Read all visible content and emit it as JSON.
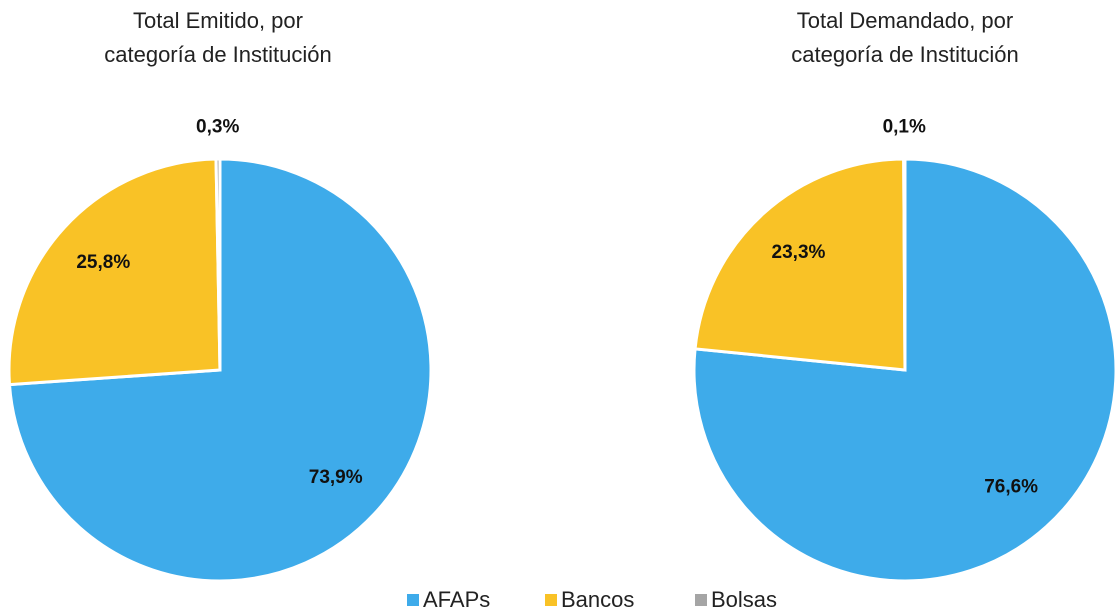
{
  "chart_data": [
    {
      "type": "pie",
      "title": "Total Emitido, por categoría de Institución",
      "categories": [
        "AFAPs",
        "Bancos",
        "Bolsas"
      ],
      "values": [
        73.9,
        25.8,
        0.3
      ],
      "value_labels": [
        "73,9%",
        "25,8%",
        "0,3%"
      ],
      "colors": [
        "#3eabea",
        "#f9c226",
        "#a5a5a5"
      ],
      "legend": "bottom"
    },
    {
      "type": "pie",
      "title": "Total Demandado, por categoría de Institución",
      "categories": [
        "AFAPs",
        "Bancos",
        "Bolsas"
      ],
      "values": [
        76.6,
        23.3,
        0.1
      ],
      "value_labels": [
        "76,6%",
        "23,3%",
        "0,1%"
      ],
      "colors": [
        "#3eabea",
        "#f9c226",
        "#a5a5a5"
      ],
      "legend": "bottom"
    }
  ]
}
